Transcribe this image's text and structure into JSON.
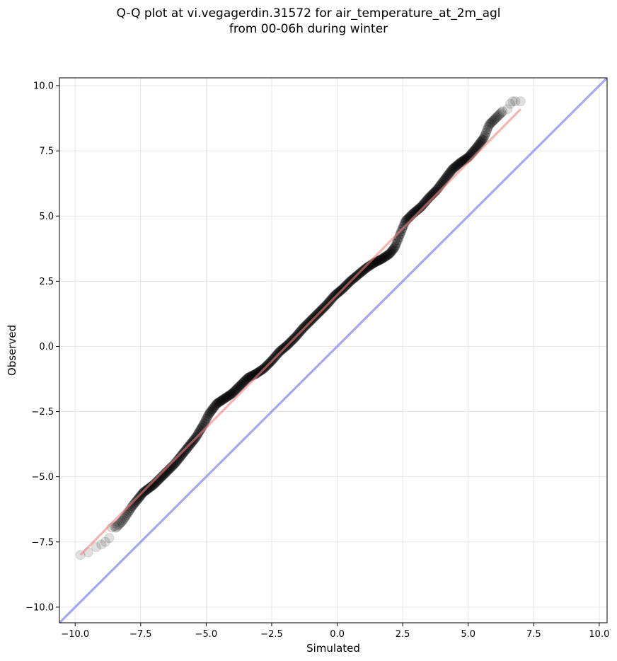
{
  "chart_data": {
    "type": "scatter",
    "title_line1": "Q-Q plot at vi.vegagerdin.31572 for air_temperature_at_2m_agl",
    "title_line2": "from 00-06h during winter",
    "xlabel": "Simulated",
    "ylabel": "Observed",
    "xlim": [
      -10.6,
      10.3
    ],
    "ylim": [
      -10.6,
      10.3
    ],
    "xticks": [
      -10.0,
      -7.5,
      -5.0,
      -2.5,
      0.0,
      2.5,
      5.0,
      7.5,
      10.0
    ],
    "yticks": [
      -10.0,
      -7.5,
      -5.0,
      -2.5,
      0.0,
      2.5,
      5.0,
      7.5,
      10.0
    ],
    "xtick_labels": [
      "−10.0",
      "−7.5",
      "−5.0",
      "−2.5",
      "0.0",
      "2.5",
      "5.0",
      "7.5",
      "10.0"
    ],
    "ytick_labels": [
      "−10.0",
      "−7.5",
      "−5.0",
      "−2.5",
      "0.0",
      "2.5",
      "5.0",
      "7.5",
      "10.0"
    ],
    "grid": true,
    "colors": {
      "points": "#000000",
      "fit_line": "#f08080",
      "identity_line": "#8888ee"
    },
    "identity_line": {
      "x": [
        -10.6,
        10.3
      ],
      "y": [
        -10.6,
        10.3
      ]
    },
    "fit_line": {
      "x": [
        -9.8,
        7.0
      ],
      "y": [
        -8.0,
        9.1
      ]
    },
    "qq_curve": {
      "x": [
        -9.8,
        -9.3,
        -8.9,
        -8.6,
        -8.2,
        -7.8,
        -7.4,
        -7.0,
        -6.6,
        -6.2,
        -5.8,
        -5.4,
        -5.1,
        -4.9,
        -4.6,
        -4.3,
        -4.0,
        -3.7,
        -3.4,
        -3.1,
        -2.8,
        -2.5,
        -2.2,
        -1.9,
        -1.6,
        -1.3,
        -1.0,
        -0.7,
        -0.4,
        -0.1,
        0.2,
        0.5,
        0.8,
        1.1,
        1.4,
        1.7,
        2.0,
        2.2,
        2.4,
        2.6,
        2.9,
        3.2,
        3.5,
        3.8,
        4.1,
        4.4,
        4.7,
        5.0,
        5.3,
        5.6,
        5.8,
        6.0,
        6.2,
        6.4,
        6.7,
        7.0
      ],
      "y": [
        -8.0,
        -7.8,
        -7.5,
        -7.1,
        -6.7,
        -6.1,
        -5.6,
        -5.3,
        -4.9,
        -4.5,
        -4.0,
        -3.5,
        -3.0,
        -2.6,
        -2.2,
        -2.0,
        -1.8,
        -1.5,
        -1.2,
        -1.05,
        -0.85,
        -0.55,
        -0.2,
        0.05,
        0.35,
        0.7,
        1.0,
        1.3,
        1.6,
        1.95,
        2.2,
        2.5,
        2.75,
        3.0,
        3.2,
        3.35,
        3.55,
        3.8,
        4.3,
        4.8,
        5.1,
        5.35,
        5.7,
        6.0,
        6.4,
        6.8,
        7.05,
        7.25,
        7.6,
        8.0,
        8.5,
        8.7,
        8.9,
        9.1,
        9.35,
        9.4
      ]
    },
    "sparse_points": {
      "x": [
        -9.8,
        -9.5,
        -9.2,
        -9.0,
        -8.85,
        -8.7,
        -8.6,
        -8.5,
        6.5,
        6.6,
        6.7,
        6.8,
        7.0
      ],
      "y": [
        -8.0,
        -7.9,
        -7.7,
        -7.6,
        -7.5,
        -7.35,
        -6.95,
        -6.9,
        9.1,
        9.3,
        9.4,
        9.4,
        9.4
      ]
    }
  }
}
